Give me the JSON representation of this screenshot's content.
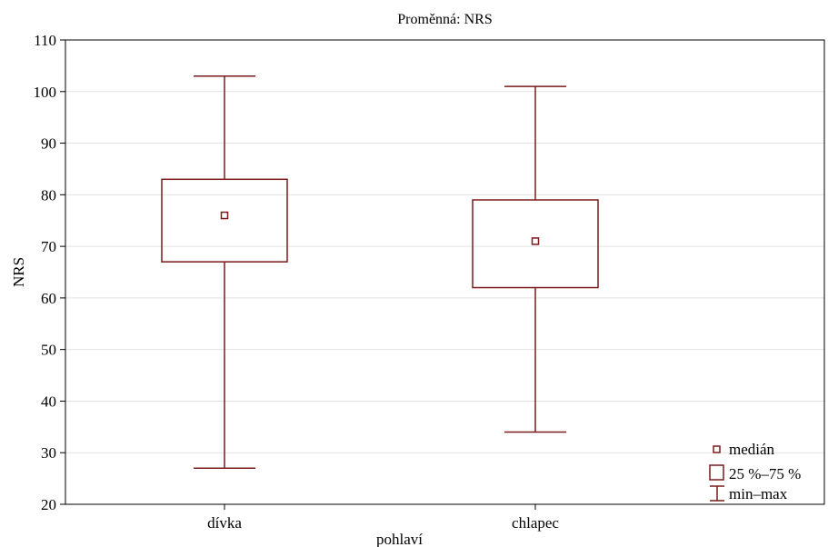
{
  "chart_data": {
    "type": "box",
    "title": "Proměnná: NRS",
    "xlabel": "pohlaví",
    "ylabel": "NRS",
    "ylim": [
      20,
      110
    ],
    "yticks": [
      20,
      30,
      40,
      50,
      60,
      70,
      80,
      90,
      100,
      110
    ],
    "grid": true,
    "legend_position": "bottom-right",
    "categories": [
      "dívka",
      "chlapec"
    ],
    "boxes": [
      {
        "category": "dívka",
        "min": 27,
        "q1": 67,
        "median": 76,
        "q3": 83,
        "max": 103
      },
      {
        "category": "chlapec",
        "min": 34,
        "q1": 62,
        "median": 71,
        "q3": 79,
        "max": 101
      }
    ],
    "legend": {
      "median": "medián",
      "box": "25 %–75 %",
      "whisker": "min–max"
    },
    "colors": {
      "box": "#7a1a1a",
      "grid": "#e2e2e2",
      "axis": "#000000"
    }
  }
}
